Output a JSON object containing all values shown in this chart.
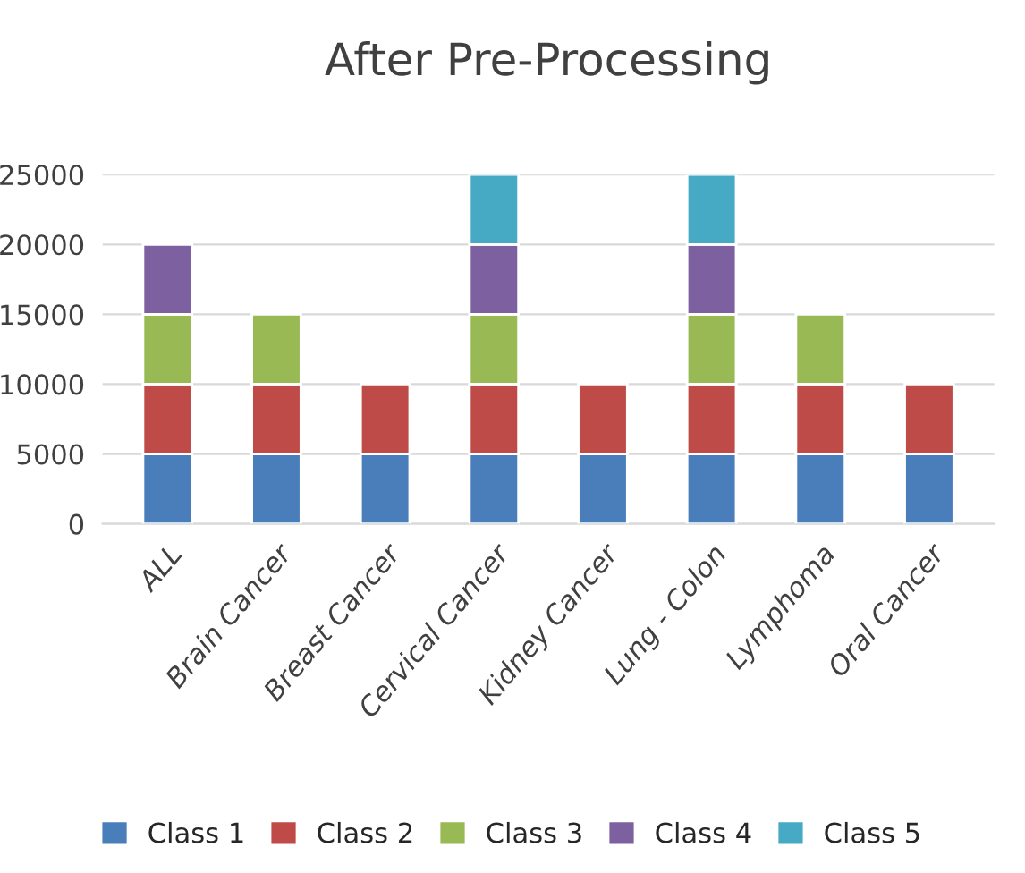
{
  "chart_data": {
    "type": "bar",
    "title": "After Pre-Processing",
    "stacked": true,
    "categories": [
      "ALL",
      "Brain Cancer",
      "Breast Cancer",
      "Cervical Cancer",
      "Kidney Cancer",
      "Lung - Colon",
      "Lymphoma",
      "Oral Cancer"
    ],
    "series": [
      {
        "name": "Class 1",
        "color": "#4a7ebb",
        "values": [
          5000,
          5000,
          5000,
          5000,
          5000,
          5000,
          5000,
          5000
        ]
      },
      {
        "name": "Class 2",
        "color": "#be4b48",
        "values": [
          5000,
          5000,
          5000,
          5000,
          5000,
          5000,
          5000,
          5000
        ]
      },
      {
        "name": "Class 3",
        "color": "#98b954",
        "values": [
          5000,
          5000,
          null,
          5000,
          null,
          5000,
          5000,
          null
        ]
      },
      {
        "name": "Class 4",
        "color": "#7d60a0",
        "values": [
          5000,
          null,
          null,
          5000,
          null,
          5000,
          null,
          null
        ]
      },
      {
        "name": "Class 5",
        "color": "#46aac5",
        "values": [
          null,
          null,
          null,
          5000,
          null,
          5000,
          null,
          null
        ]
      }
    ],
    "ylim": [
      0,
      25000
    ],
    "yticks": [
      0,
      5000,
      10000,
      15000,
      20000,
      25000
    ],
    "grid": "y",
    "legend": "bottom"
  }
}
